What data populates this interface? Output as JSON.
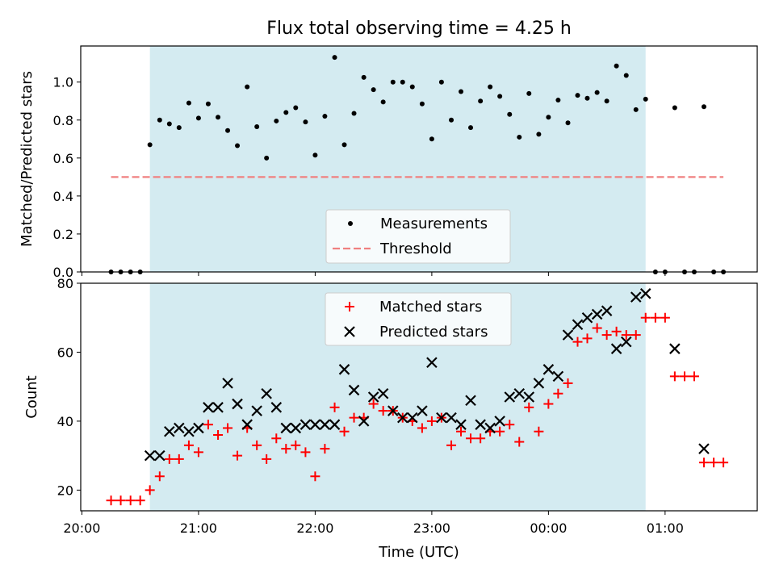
{
  "figure": {
    "title": "Flux total observing time = 4.25 h",
    "xlabel": "Time (UTC)",
    "x_tick_labels": [
      "20:00",
      "21:00",
      "22:00",
      "23:00",
      "00:00",
      "01:00"
    ],
    "shaded_interval": {
      "start": 20.583,
      "end": 24.833,
      "color": "#d4ebf1"
    }
  },
  "chart_data": [
    {
      "type": "scatter",
      "ylabel": "Matched/Predicted stars",
      "xlim": [
        19.99,
        25.79
      ],
      "ylim": [
        0,
        1.19
      ],
      "y_ticks": [
        "0.0",
        "0.2",
        "0.4",
        "0.6",
        "0.8",
        "1.0"
      ],
      "x_ticks": [
        20,
        21,
        22,
        23,
        24,
        25
      ],
      "x_tick_labels_shown": false,
      "legend": {
        "position": "lower-center",
        "entries": [
          "Measurements",
          "Threshold"
        ]
      },
      "threshold": {
        "name": "Threshold",
        "y": 0.5,
        "x_range": [
          20.25,
          25.5
        ],
        "color": "#f08080"
      },
      "series": [
        {
          "name": "Measurements",
          "marker": "dot",
          "color": "#000000",
          "points": [
            [
              20.25,
              0
            ],
            [
              20.333,
              0
            ],
            [
              20.417,
              0
            ],
            [
              20.5,
              0
            ],
            [
              20.583,
              0.67
            ],
            [
              20.667,
              0.8
            ],
            [
              20.75,
              0.78
            ],
            [
              20.833,
              0.76
            ],
            [
              20.917,
              0.89
            ],
            [
              21.0,
              0.81
            ],
            [
              21.083,
              0.885
            ],
            [
              21.167,
              0.815
            ],
            [
              21.25,
              0.745
            ],
            [
              21.333,
              0.665
            ],
            [
              21.417,
              0.975
            ],
            [
              21.5,
              0.765
            ],
            [
              21.583,
              0.6
            ],
            [
              21.667,
              0.795
            ],
            [
              21.75,
              0.84
            ],
            [
              21.833,
              0.865
            ],
            [
              21.917,
              0.79
            ],
            [
              22.0,
              0.615
            ],
            [
              22.083,
              0.82
            ],
            [
              22.167,
              1.13
            ],
            [
              22.25,
              0.67
            ],
            [
              22.333,
              0.835
            ],
            [
              22.417,
              1.025
            ],
            [
              22.5,
              0.96
            ],
            [
              22.583,
              0.895
            ],
            [
              22.667,
              1.0
            ],
            [
              22.75,
              1.0
            ],
            [
              22.833,
              0.975
            ],
            [
              22.917,
              0.885
            ],
            [
              23.0,
              0.7
            ],
            [
              23.083,
              1.0
            ],
            [
              23.167,
              0.8
            ],
            [
              23.25,
              0.95
            ],
            [
              23.333,
              0.76
            ],
            [
              23.417,
              0.9
            ],
            [
              23.5,
              0.975
            ],
            [
              23.583,
              0.925
            ],
            [
              23.667,
              0.83
            ],
            [
              23.75,
              0.71
            ],
            [
              23.833,
              0.94
            ],
            [
              23.917,
              0.725
            ],
            [
              24.0,
              0.815
            ],
            [
              24.083,
              0.905
            ],
            [
              24.167,
              0.785
            ],
            [
              24.25,
              0.93
            ],
            [
              24.333,
              0.915
            ],
            [
              24.417,
              0.945
            ],
            [
              24.5,
              0.9
            ],
            [
              24.583,
              1.085
            ],
            [
              24.667,
              1.035
            ],
            [
              24.75,
              0.855
            ],
            [
              24.833,
              0.91
            ],
            [
              24.917,
              0
            ],
            [
              25.0,
              0
            ],
            [
              25.083,
              0.865
            ],
            [
              25.167,
              0
            ],
            [
              25.25,
              0
            ],
            [
              25.333,
              0.87
            ],
            [
              25.417,
              0
            ],
            [
              25.5,
              0
            ]
          ]
        }
      ]
    },
    {
      "type": "scatter",
      "ylabel": "Count",
      "xlim": [
        19.99,
        25.79
      ],
      "ylim": [
        14,
        80
      ],
      "y_ticks": [
        "20",
        "40",
        "60",
        "80"
      ],
      "x_ticks": [
        20,
        21,
        22,
        23,
        24,
        25
      ],
      "legend": {
        "position": "top-center",
        "entries": [
          "Matched stars",
          "Predicted stars"
        ]
      },
      "series": [
        {
          "name": "Matched stars",
          "marker": "plus",
          "color": "#ff0000",
          "points": [
            [
              20.25,
              17
            ],
            [
              20.333,
              17
            ],
            [
              20.417,
              17
            ],
            [
              20.5,
              17
            ],
            [
              20.583,
              20
            ],
            [
              20.667,
              24
            ],
            [
              20.75,
              29
            ],
            [
              20.833,
              29
            ],
            [
              20.917,
              33
            ],
            [
              21.0,
              31
            ],
            [
              21.083,
              39
            ],
            [
              21.167,
              36
            ],
            [
              21.25,
              38
            ],
            [
              21.333,
              30
            ],
            [
              21.417,
              38
            ],
            [
              21.5,
              33
            ],
            [
              21.583,
              29
            ],
            [
              21.667,
              35
            ],
            [
              21.75,
              32
            ],
            [
              21.833,
              33
            ],
            [
              21.917,
              31
            ],
            [
              22.0,
              24
            ],
            [
              22.083,
              32
            ],
            [
              22.167,
              44
            ],
            [
              22.25,
              37
            ],
            [
              22.333,
              41
            ],
            [
              22.417,
              41
            ],
            [
              22.5,
              45
            ],
            [
              22.583,
              43
            ],
            [
              22.667,
              43
            ],
            [
              22.75,
              41
            ],
            [
              22.833,
              40
            ],
            [
              22.917,
              38
            ],
            [
              23.0,
              40
            ],
            [
              23.083,
              41
            ],
            [
              23.167,
              33
            ],
            [
              23.25,
              37
            ],
            [
              23.333,
              35
            ],
            [
              23.417,
              35
            ],
            [
              23.5,
              37
            ],
            [
              23.583,
              37
            ],
            [
              23.667,
              39
            ],
            [
              23.75,
              34
            ],
            [
              23.833,
              44
            ],
            [
              23.917,
              37
            ],
            [
              24.0,
              45
            ],
            [
              24.083,
              48
            ],
            [
              24.167,
              51
            ],
            [
              24.25,
              63
            ],
            [
              24.333,
              64
            ],
            [
              24.417,
              67
            ],
            [
              24.5,
              65
            ],
            [
              24.583,
              66
            ],
            [
              24.667,
              65
            ],
            [
              24.75,
              65
            ],
            [
              24.833,
              70
            ],
            [
              24.917,
              70
            ],
            [
              25.0,
              70
            ],
            [
              25.083,
              53
            ],
            [
              25.167,
              53
            ],
            [
              25.25,
              53
            ],
            [
              25.333,
              28
            ],
            [
              25.417,
              28
            ],
            [
              25.5,
              28
            ]
          ]
        },
        {
          "name": "Predicted stars",
          "marker": "x",
          "color": "#000000",
          "points": [
            [
              20.583,
              30
            ],
            [
              20.667,
              30
            ],
            [
              20.75,
              37
            ],
            [
              20.833,
              38
            ],
            [
              20.917,
              37
            ],
            [
              21.0,
              38
            ],
            [
              21.083,
              44
            ],
            [
              21.167,
              44
            ],
            [
              21.25,
              51
            ],
            [
              21.333,
              45
            ],
            [
              21.417,
              39
            ],
            [
              21.5,
              43
            ],
            [
              21.583,
              48
            ],
            [
              21.667,
              44
            ],
            [
              21.75,
              38
            ],
            [
              21.833,
              38
            ],
            [
              21.917,
              39
            ],
            [
              22.0,
              39
            ],
            [
              22.083,
              39
            ],
            [
              22.167,
              39
            ],
            [
              22.25,
              55
            ],
            [
              22.333,
              49
            ],
            [
              22.417,
              40
            ],
            [
              22.5,
              47
            ],
            [
              22.583,
              48
            ],
            [
              22.667,
              43
            ],
            [
              22.75,
              41
            ],
            [
              22.833,
              41
            ],
            [
              22.917,
              43
            ],
            [
              23.0,
              57
            ],
            [
              23.083,
              41
            ],
            [
              23.167,
              41
            ],
            [
              23.25,
              39
            ],
            [
              23.333,
              46
            ],
            [
              23.417,
              39
            ],
            [
              23.5,
              38
            ],
            [
              23.583,
              40
            ],
            [
              23.667,
              47
            ],
            [
              23.75,
              48
            ],
            [
              23.833,
              47
            ],
            [
              23.917,
              51
            ],
            [
              24.0,
              55
            ],
            [
              24.083,
              53
            ],
            [
              24.167,
              65
            ],
            [
              24.25,
              68
            ],
            [
              24.333,
              70
            ],
            [
              24.417,
              71
            ],
            [
              24.5,
              72
            ],
            [
              24.583,
              61
            ],
            [
              24.667,
              63
            ],
            [
              24.75,
              76
            ],
            [
              24.833,
              77
            ],
            [
              25.083,
              61
            ],
            [
              25.333,
              32
            ]
          ]
        }
      ]
    }
  ]
}
